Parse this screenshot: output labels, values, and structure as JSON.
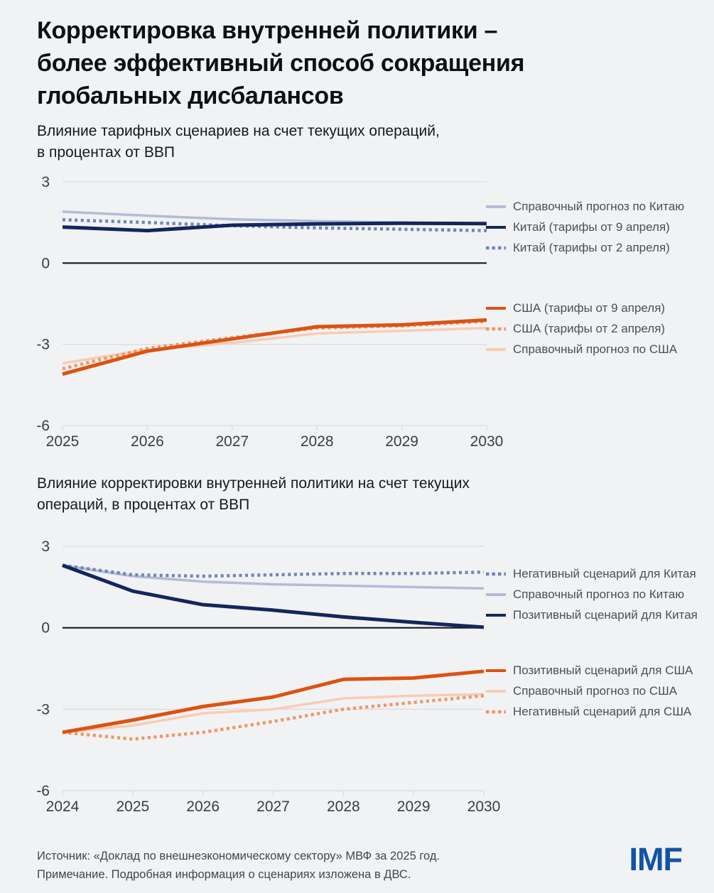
{
  "page": {
    "title": "Корректировка внутренней политики –\nболее эффективный способ сокращения\nглобальных дисбалансов",
    "footer": {
      "source": "Источник: «Доклад по внешнеэкономическому сектору» МВФ за 2025 год.",
      "note": "Примечание. Подробная информация о сценариях изложена в ДВС.",
      "logo": "IMF"
    },
    "colors": {
      "background": "#f1f2f4",
      "grid": "#d9dbde",
      "zero_line": "#17181a",
      "axis_text": "#393d43",
      "legend_text": "#4a4f56",
      "navy": "#13265c",
      "light_blue": "#b2bcd5",
      "slate_blue": "#7085b3",
      "orange": "#dd5210",
      "light_orange": "#f0945f",
      "peach": "#f9ccb2",
      "imf_blue": "#1253a4"
    }
  },
  "chart_data": [
    {
      "type": "line",
      "title": "Влияние тарифных сценариев на счет текущих операций,\nв процентах от ВВП",
      "x": [
        2025,
        2026,
        2027,
        2028,
        2029,
        2030
      ],
      "ylim": [
        -6,
        3
      ],
      "yticks": [
        3,
        0,
        -3,
        -6
      ],
      "grid": "horizontal",
      "legend_position": "right",
      "series": [
        {
          "name": "Справочный прогноз по Китаю",
          "color": "#b2bcd5",
          "dash": false,
          "width": 3.5,
          "values": [
            1.9,
            1.75,
            1.62,
            1.55,
            1.5,
            1.45
          ]
        },
        {
          "name": "Китай (тарифы от 2 апреля)",
          "color": "#7085b3",
          "dash": true,
          "width": 4.5,
          "values": [
            1.6,
            1.5,
            1.38,
            1.3,
            1.25,
            1.2
          ]
        },
        {
          "name": "Китай (тарифы от 9 апреля)",
          "color": "#13265c",
          "dash": false,
          "width": 5,
          "values": [
            1.33,
            1.2,
            1.4,
            1.45,
            1.47,
            1.46
          ]
        },
        {
          "name": "Справочный прогноз по США",
          "color": "#f9ccb2",
          "dash": false,
          "width": 3.5,
          "values": [
            -3.7,
            -3.2,
            -2.95,
            -2.6,
            -2.5,
            -2.4
          ]
        },
        {
          "name": "США (тарифы от 2 апреля)",
          "color": "#f0945f",
          "dash": true,
          "width": 4.5,
          "values": [
            -3.9,
            -3.15,
            -2.75,
            -2.4,
            -2.32,
            -2.15
          ]
        },
        {
          "name": "США (тарифы от 9 апреля)",
          "color": "#dd5210",
          "dash": false,
          "width": 5,
          "values": [
            -4.1,
            -3.25,
            -2.8,
            -2.35,
            -2.28,
            -2.1
          ]
        }
      ],
      "legend_groups": [
        [
          0,
          2,
          1
        ],
        [
          5,
          4,
          3
        ]
      ]
    },
    {
      "type": "line",
      "title": "Влияние корректировки внутренней политики на счет текущих\nопераций, в процентах от ВВП",
      "x": [
        2024,
        2025,
        2026,
        2027,
        2028,
        2029,
        2030
      ],
      "ylim": [
        -6,
        3
      ],
      "yticks": [
        3,
        0,
        -3,
        -6
      ],
      "grid": "horizontal",
      "legend_position": "right",
      "series": [
        {
          "name": "Справочный прогноз по Китаю",
          "color": "#b2bcd5",
          "dash": false,
          "width": 3.5,
          "values": [
            2.3,
            1.9,
            1.7,
            1.6,
            1.55,
            1.5,
            1.45
          ]
        },
        {
          "name": "Негативный сценарий для Китая",
          "color": "#7085b3",
          "dash": true,
          "width": 4.5,
          "values": [
            2.3,
            1.95,
            1.9,
            1.95,
            2.0,
            2.0,
            2.05
          ]
        },
        {
          "name": "Позитивный сценарий для Китая",
          "color": "#13265c",
          "dash": false,
          "width": 5,
          "values": [
            2.3,
            1.35,
            0.85,
            0.65,
            0.4,
            0.2,
            0.02
          ]
        },
        {
          "name": "Справочный прогноз по США",
          "color": "#f9ccb2",
          "dash": false,
          "width": 3.5,
          "values": [
            -3.85,
            -3.6,
            -3.15,
            -3.0,
            -2.6,
            -2.5,
            -2.45
          ]
        },
        {
          "name": "Негативный сценарий для США",
          "color": "#f0945f",
          "dash": true,
          "width": 4.5,
          "values": [
            -3.85,
            -4.1,
            -3.85,
            -3.45,
            -3.0,
            -2.75,
            -2.5
          ]
        },
        {
          "name": "Позитивный сценарий для США",
          "color": "#dd5210",
          "dash": false,
          "width": 5,
          "values": [
            -3.85,
            -3.4,
            -2.9,
            -2.55,
            -1.9,
            -1.85,
            -1.6
          ]
        }
      ],
      "legend_groups": [
        [
          1,
          0,
          2
        ],
        [
          5,
          3,
          4
        ]
      ]
    }
  ]
}
